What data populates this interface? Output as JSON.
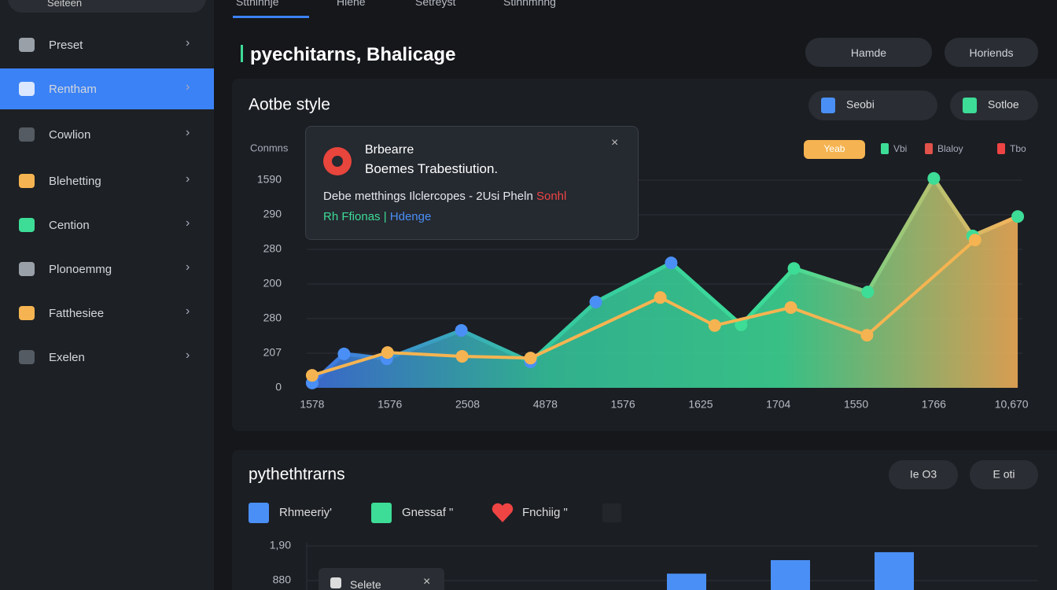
{
  "search": {
    "placeholder": "Seiteen"
  },
  "tabs": [
    "Stthinnje",
    "Hiehe",
    "Setreyst",
    "Stlhhmhhg"
  ],
  "sidebar": [
    "Preset",
    "Rentham",
    "Cowlion",
    "Blehetting",
    "Cention",
    "Plonoemmg",
    "Fatthesiee",
    "Exelen"
  ],
  "header": {
    "title": "pyechitarns, Bhalicage",
    "buttons": [
      "Hamde",
      "Horiends"
    ]
  },
  "tooltip": {
    "title": "Brbearre",
    "subtitle": "Boemes Trabestiution.",
    "line1": "Debe metthings Ilclercopes - 2Usi Pheln",
    "line1_alert": "Sonhl",
    "line2a": "Rh Ffionas |",
    "line2b": "Hdenge"
  },
  "popup": {
    "label": "Selete"
  },
  "chart_data": [
    {
      "type": "area",
      "title": "Aotbe style",
      "y_label": "Conmns",
      "controls": [
        "Seobi",
        "Sotloe"
      ],
      "xlim": [
        -0.07,
        9.14
      ],
      "ylim": [
        0,
        6.5
      ],
      "xticks": [
        {
          "value": 0,
          "label": "1578"
        },
        {
          "value": 1,
          "label": "1576"
        },
        {
          "value": 2,
          "label": "2508"
        },
        {
          "value": 3,
          "label": "4878"
        },
        {
          "value": 4,
          "label": "1576"
        },
        {
          "value": 5,
          "label": "1625"
        },
        {
          "value": 6,
          "label": "1704"
        },
        {
          "value": 7,
          "label": "1550"
        },
        {
          "value": 8,
          "label": "1766"
        },
        {
          "value": 9,
          "label": "10,670"
        }
      ],
      "yticks": [
        0,
        {
          "value": 1,
          "label": "207"
        },
        {
          "value": 2,
          "label": "280"
        },
        {
          "value": 3,
          "label": "200"
        },
        {
          "value": 4,
          "label": "280"
        },
        {
          "value": 5,
          "label": "290"
        },
        {
          "value": 6,
          "label": "1590"
        }
      ],
      "grid": true,
      "area_gradient": [
        "#3f74e6",
        "#35c9a0",
        "#3ddc97",
        "#f9b35a"
      ],
      "series": [
        {
          "name": "Yeab",
          "color": "#f5b451",
          "x": [
            0,
            0.97,
            1.93,
            2.81,
            4.48,
            5.18,
            6.16,
            7.14,
            8.53
          ],
          "values": [
            0.36,
            1.02,
            0.91,
            0.86,
            2.61,
            1.8,
            2.32,
            1.52,
            4.27
          ]
        },
        {
          "name": "Vbi",
          "color": "#3ddc97",
          "x": [
            0,
            0.41,
            0.96,
            1.92,
            2.81,
            3.65,
            4.62,
            5.52,
            6.2,
            7.15,
            8.0,
            8.5,
            9.08
          ],
          "values": [
            0.14,
            0.98,
            0.84,
            1.66,
            0.75,
            2.48,
            3.61,
            1.82,
            3.45,
            2.77,
            6.05,
            4.39,
            4.95
          ]
        }
      ],
      "legend_extra": [
        {
          "name": "Blaloy",
          "color": "#e0524a"
        },
        {
          "name": "Tbo",
          "color": "#ef4444"
        }
      ]
    },
    {
      "type": "bar",
      "title": "pythethtrarns",
      "controls": [
        "Ie O3",
        "E oti"
      ],
      "ylim": [
        0,
        2.5
      ],
      "yticks": [
        {
          "value": 2,
          "label": "1,90"
        },
        {
          "value": 1,
          "label": "880"
        }
      ],
      "grid": true,
      "categories": [
        null,
        null,
        null
      ],
      "series": [
        {
          "name": "Rhmeeriy'",
          "color": "#4a8ff5",
          "values": [
            1.2,
            1.59,
            1.82
          ]
        }
      ],
      "legend_extra": [
        {
          "name": "Gnessaf \"",
          "color": "#3ddc97"
        },
        {
          "name": "Fnchiig \"",
          "color": "#ef4444"
        }
      ]
    }
  ]
}
